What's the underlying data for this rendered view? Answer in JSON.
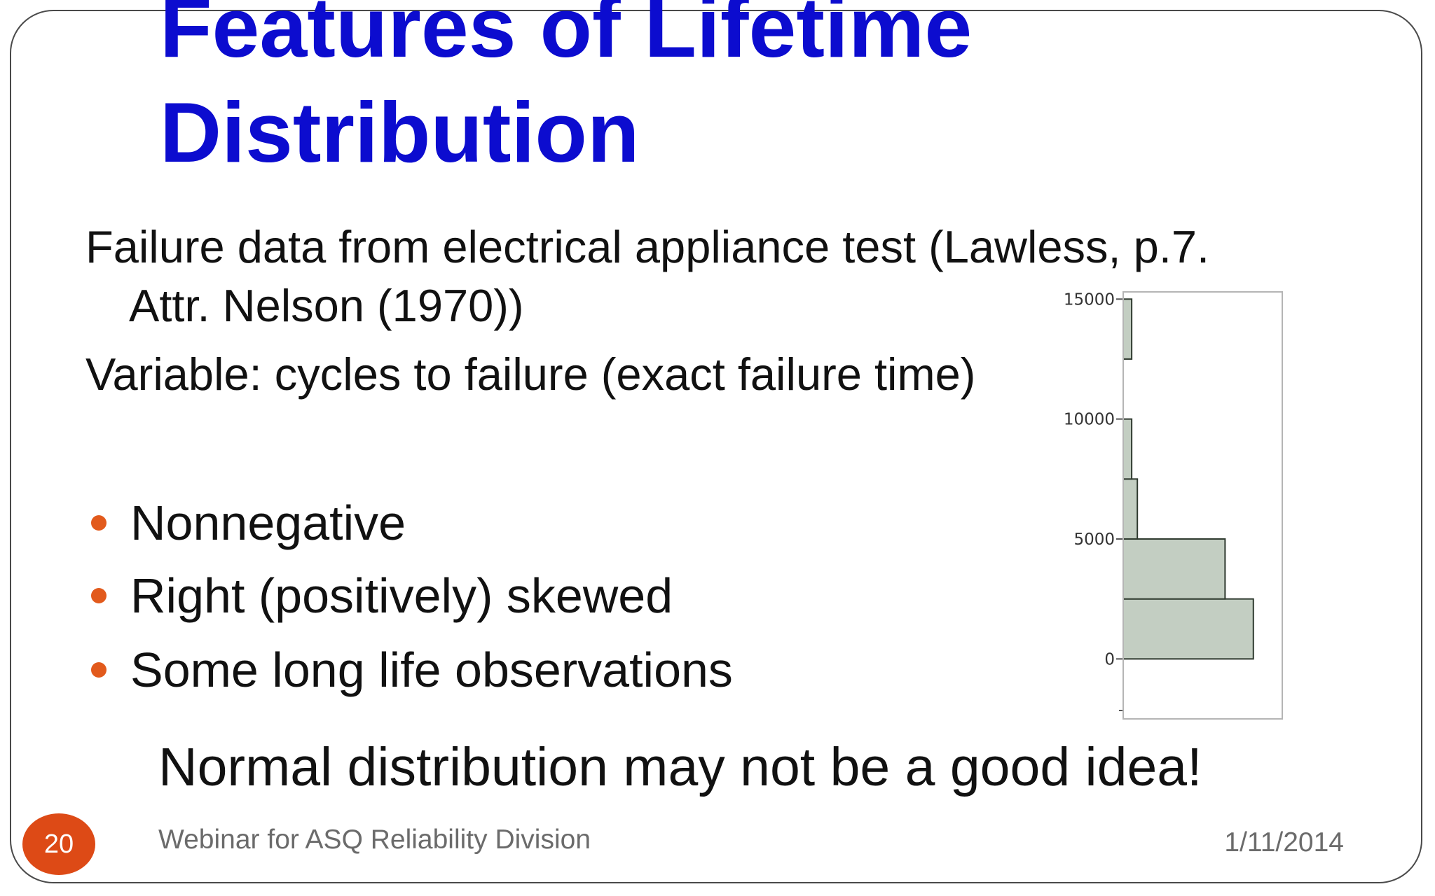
{
  "slide": {
    "title_line1": "Features of Lifetime",
    "title_line2": "Distribution",
    "source_line1": "Failure data from electrical appliance test (Lawless, p.7.",
    "source_line2": "Attr. Nelson (1970))",
    "variable_line": "Variable: cycles to failure (exact failure time)",
    "bullets": [
      "Nonnegative",
      "Right (positively) skewed",
      "Some long life observations"
    ],
    "conclusion": "Normal distribution may not be a good idea!",
    "footer": "Webinar for ASQ Reliability Division",
    "date": "1/11/2014",
    "page_number": "20"
  },
  "colors": {
    "title": "#0c0ccf",
    "bullet": "#e25a1c",
    "page_badge": "#dd4a16",
    "bar_fill": "#c3cec2"
  },
  "chart_data": {
    "type": "bar",
    "orientation": "horizontal",
    "value_axis": "y",
    "y_ticks": [
      "0",
      "5000",
      "10000",
      "15000"
    ],
    "ylim": [
      -2500,
      15300
    ],
    "bins": [
      {
        "from": 0,
        "to": 2500,
        "count": 46
      },
      {
        "from": 2500,
        "to": 5000,
        "count": 36
      },
      {
        "from": 5000,
        "to": 7500,
        "count": 5
      },
      {
        "from": 7500,
        "to": 10000,
        "count": 3
      },
      {
        "from": 10000,
        "to": 12500,
        "count": 0
      },
      {
        "from": 12500,
        "to": 15000,
        "count": 3
      }
    ],
    "count_max": 52,
    "title": "",
    "xlabel": "",
    "ylabel": "",
    "grid": false
  }
}
